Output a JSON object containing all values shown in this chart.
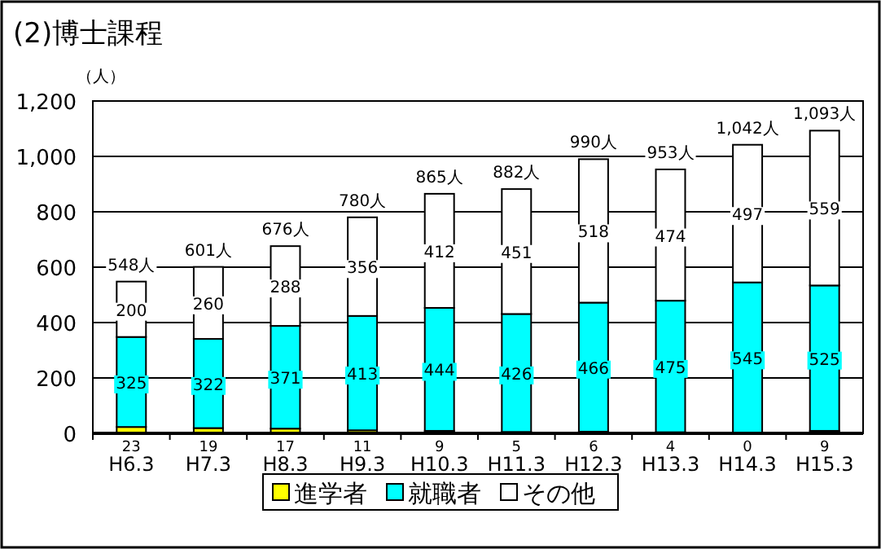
{
  "chart_data": {
    "type": "bar",
    "title": "(2)博士課程",
    "ylabel": "（人）",
    "stacked": true,
    "data_labels": true,
    "legend": "bottom",
    "grid": "y",
    "categories": [
      "H6.3",
      "H7.3",
      "H8.3",
      "H9.3",
      "H10.3",
      "H11.3",
      "H12.3",
      "H13.3",
      "H14.3",
      "H15.3"
    ],
    "series": [
      {
        "name": "進学者",
        "color": "#ffff00",
        "values": [
          23,
          19,
          17,
          11,
          9,
          5,
          6,
          4,
          0,
          9
        ]
      },
      {
        "name": "就職者",
        "color": "#00ffff",
        "values": [
          325,
          322,
          371,
          413,
          444,
          426,
          466,
          475,
          545,
          525
        ]
      },
      {
        "name": "その他",
        "color": "#ffffff",
        "values": [
          200,
          260,
          288,
          356,
          412,
          451,
          518,
          474,
          497,
          559
        ]
      }
    ],
    "totals": [
      "548人",
      "601人",
      "676人",
      "780人",
      "865人",
      "882人",
      "990人",
      "953人",
      "1,042人",
      "1,093人"
    ],
    "ylim": [
      0,
      1200
    ],
    "yticks": [
      0,
      200,
      400,
      600,
      800,
      {
        "value": 1000,
        "label": "1,000"
      },
      {
        "value": 1200,
        "label": "1,200"
      }
    ]
  }
}
